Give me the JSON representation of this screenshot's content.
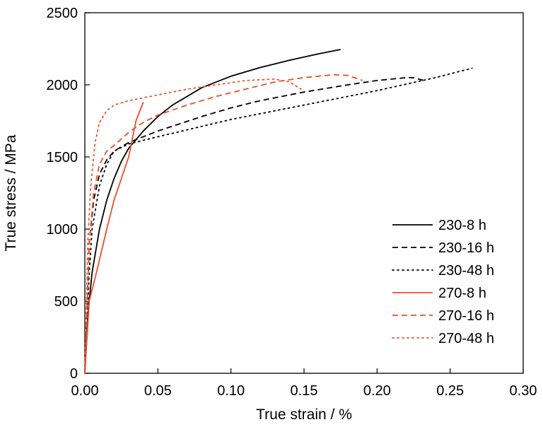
{
  "chart_data": {
    "type": "line",
    "xlabel": "True strain / %",
    "ylabel": "True stress / MPa",
    "xlim": [
      0,
      0.3
    ],
    "ylim": [
      0,
      2500
    ],
    "x_ticks": [
      0.0,
      0.05,
      0.1,
      0.15,
      0.2,
      0.25,
      0.3
    ],
    "x_tick_labels": [
      "0.00",
      "0.05",
      "0.10",
      "0.15",
      "0.20",
      "0.25",
      "0.30"
    ],
    "y_ticks": [
      0,
      500,
      1000,
      1500,
      2000,
      2500
    ],
    "y_tick_labels": [
      "0",
      "500",
      "1000",
      "1500",
      "2000",
      "2500"
    ],
    "grid": false,
    "legend_position": "lower-right",
    "colors": {
      "black": "#000000",
      "orange": "#e8502a"
    },
    "series": [
      {
        "name": "230-8 h",
        "color": "#000000",
        "dash": "solid",
        "points": [
          [
            0,
            0
          ],
          [
            0.002,
            400
          ],
          [
            0.005,
            700
          ],
          [
            0.01,
            1000
          ],
          [
            0.015,
            1200
          ],
          [
            0.02,
            1350
          ],
          [
            0.025,
            1470
          ],
          [
            0.03,
            1560
          ],
          [
            0.04,
            1680
          ],
          [
            0.05,
            1780
          ],
          [
            0.06,
            1860
          ],
          [
            0.08,
            1980
          ],
          [
            0.1,
            2060
          ],
          [
            0.12,
            2120
          ],
          [
            0.14,
            2170
          ],
          [
            0.16,
            2215
          ],
          [
            0.175,
            2245
          ]
        ]
      },
      {
        "name": "230-16 h",
        "color": "#000000",
        "dash": "dashed",
        "points": [
          [
            0,
            0
          ],
          [
            0.003,
            900
          ],
          [
            0.006,
            1200
          ],
          [
            0.01,
            1380
          ],
          [
            0.015,
            1480
          ],
          [
            0.02,
            1540
          ],
          [
            0.03,
            1600
          ],
          [
            0.05,
            1680
          ],
          [
            0.08,
            1780
          ],
          [
            0.1,
            1840
          ],
          [
            0.12,
            1890
          ],
          [
            0.15,
            1950
          ],
          [
            0.18,
            2000
          ],
          [
            0.2,
            2030
          ],
          [
            0.22,
            2050
          ],
          [
            0.225,
            2050
          ],
          [
            0.232,
            2030
          ]
        ]
      },
      {
        "name": "230-48 h",
        "color": "#000000",
        "dash": "dotted",
        "points": [
          [
            0,
            0
          ],
          [
            0.003,
            700
          ],
          [
            0.005,
            1000
          ],
          [
            0.01,
            1300
          ],
          [
            0.015,
            1450
          ],
          [
            0.02,
            1540
          ],
          [
            0.03,
            1590
          ],
          [
            0.05,
            1640
          ],
          [
            0.1,
            1760
          ],
          [
            0.15,
            1860
          ],
          [
            0.2,
            1960
          ],
          [
            0.24,
            2050
          ],
          [
            0.265,
            2115
          ]
        ]
      },
      {
        "name": "270-8 h",
        "color": "#e8502a",
        "dash": "solid",
        "points": [
          [
            0,
            0
          ],
          [
            0.003,
            500
          ],
          [
            0.008,
            700
          ],
          [
            0.015,
            1000
          ],
          [
            0.02,
            1200
          ],
          [
            0.03,
            1500
          ],
          [
            0.035,
            1750
          ],
          [
            0.04,
            1880
          ]
        ]
      },
      {
        "name": "270-16 h",
        "color": "#e8502a",
        "dash": "dashed",
        "points": [
          [
            0,
            0
          ],
          [
            0.003,
            900
          ],
          [
            0.006,
            1250
          ],
          [
            0.01,
            1450
          ],
          [
            0.015,
            1540
          ],
          [
            0.02,
            1580
          ],
          [
            0.03,
            1670
          ],
          [
            0.04,
            1740
          ],
          [
            0.05,
            1790
          ],
          [
            0.07,
            1860
          ],
          [
            0.09,
            1920
          ],
          [
            0.11,
            1970
          ],
          [
            0.13,
            2020
          ],
          [
            0.15,
            2050
          ],
          [
            0.17,
            2070
          ],
          [
            0.18,
            2065
          ],
          [
            0.19,
            2030
          ]
        ]
      },
      {
        "name": "270-48 h",
        "color": "#e8502a",
        "dash": "dotted",
        "points": [
          [
            0,
            0
          ],
          [
            0.002,
            900
          ],
          [
            0.004,
            1300
          ],
          [
            0.007,
            1600
          ],
          [
            0.01,
            1740
          ],
          [
            0.015,
            1820
          ],
          [
            0.02,
            1860
          ],
          [
            0.03,
            1890
          ],
          [
            0.05,
            1930
          ],
          [
            0.07,
            1970
          ],
          [
            0.09,
            2000
          ],
          [
            0.11,
            2030
          ],
          [
            0.13,
            2040
          ],
          [
            0.14,
            2020
          ],
          [
            0.148,
            1970
          ]
        ]
      }
    ]
  }
}
